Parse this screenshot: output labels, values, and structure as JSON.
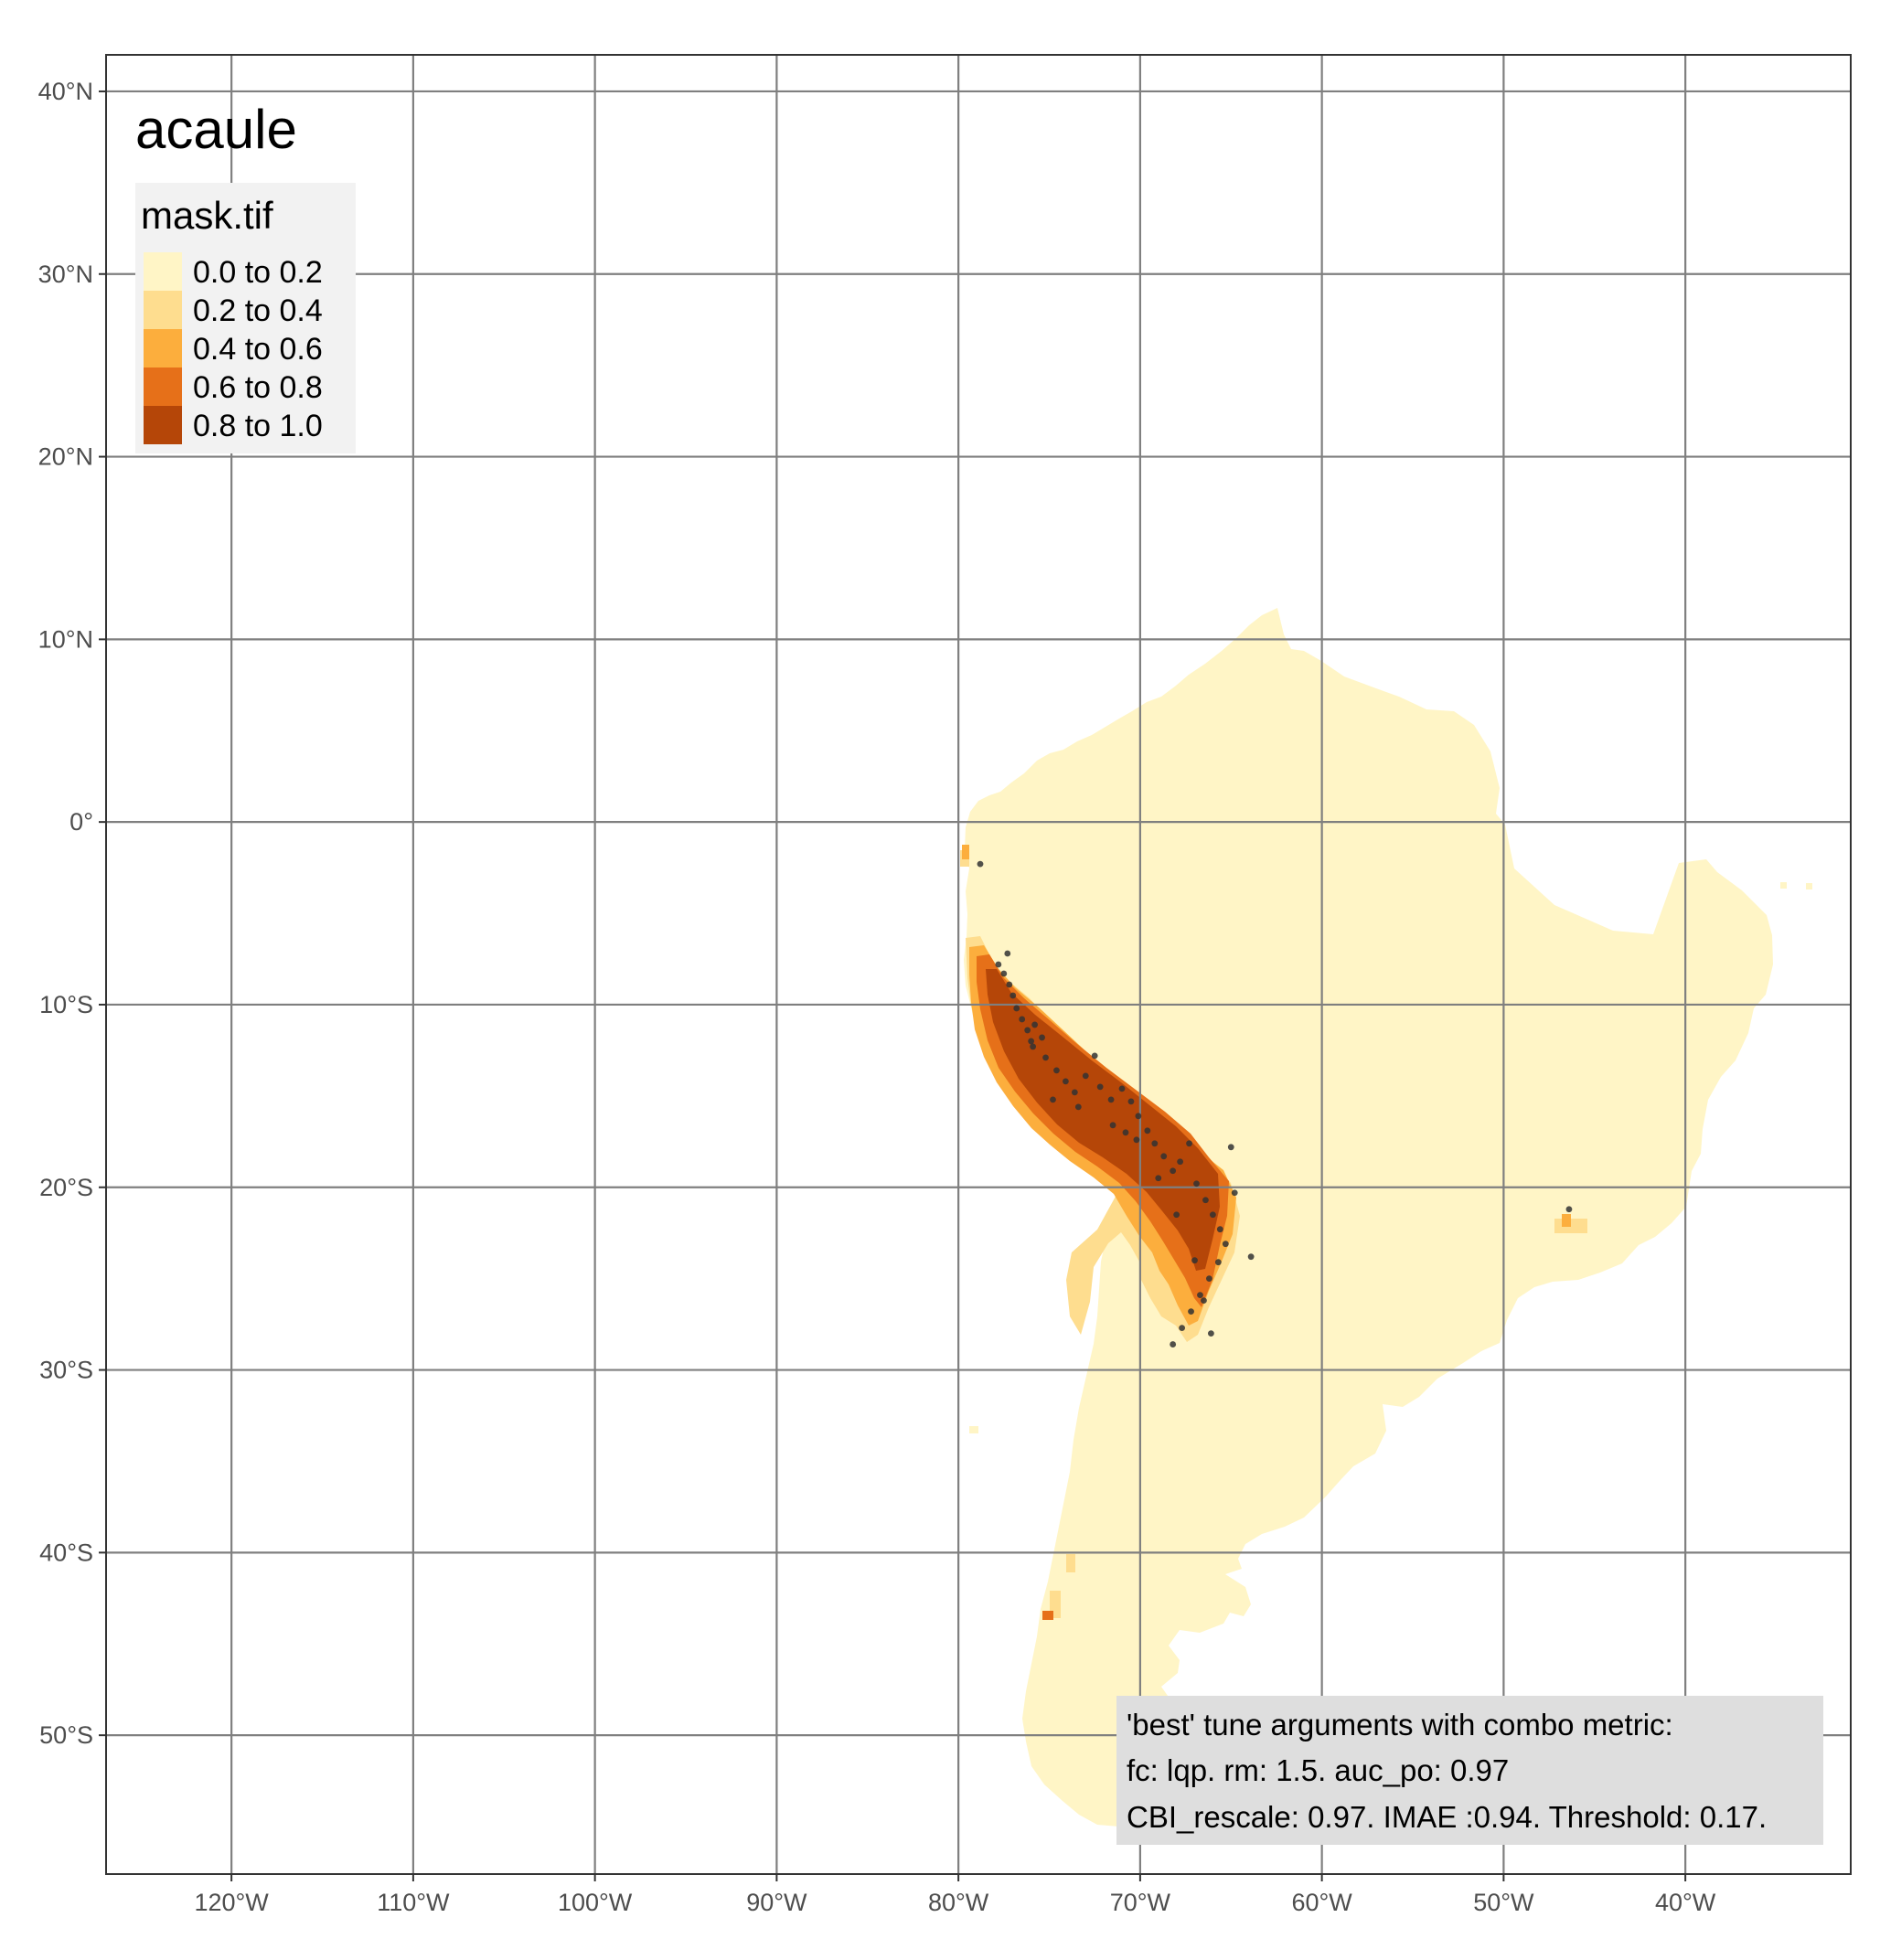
{
  "map": {
    "title": "acaule",
    "x_ticks": [
      {
        "lon": -120,
        "label": "120°W"
      },
      {
        "lon": -110,
        "label": "110°W"
      },
      {
        "lon": -100,
        "label": "100°W"
      },
      {
        "lon": -90,
        "label": "90°W"
      },
      {
        "lon": -80,
        "label": "80°W"
      },
      {
        "lon": -70,
        "label": "70°W"
      },
      {
        "lon": -60,
        "label": "60°W"
      },
      {
        "lon": -50,
        "label": "50°W"
      },
      {
        "lon": -40,
        "label": "40°W"
      }
    ],
    "y_ticks": [
      {
        "lat": 40,
        "label": "40°N"
      },
      {
        "lat": 30,
        "label": "30°N"
      },
      {
        "lat": 20,
        "label": "20°N"
      },
      {
        "lat": 10,
        "label": "10°N"
      },
      {
        "lat": 0,
        "label": "0°"
      },
      {
        "lat": -10,
        "label": "10°S"
      },
      {
        "lat": -20,
        "label": "20°S"
      },
      {
        "lat": -30,
        "label": "30°S"
      },
      {
        "lat": -40,
        "label": "40°S"
      },
      {
        "lat": -50,
        "label": "50°S"
      }
    ],
    "lon_range": [
      -126.9,
      -30.9
    ],
    "lat_range": [
      -57.6,
      42.0
    ],
    "legend": {
      "title": "mask.tif",
      "placement": "top-left",
      "classes": [
        {
          "label": "0.0 to 0.2",
          "color": "#FFF5C6"
        },
        {
          "label": "0.2 to 0.4",
          "color": "#FEDD8F"
        },
        {
          "label": "0.4 to 0.6",
          "color": "#FCAE3D"
        },
        {
          "label": "0.6 to 0.8",
          "color": "#E67019"
        },
        {
          "label": "0.8 to 1.0",
          "color": "#B54608"
        }
      ]
    },
    "annotation": [
      "'best' tune arguments with combo metric:",
      "fc: lqp. rm: 1.5. auc_po: 0.97",
      "CBI_rescale: 0.97. IMAE :0.94. Threshold: 0.17."
    ],
    "occurrences": [
      [
        -78.8,
        -2.3
      ],
      [
        -77.3,
        -7.2
      ],
      [
        -77.8,
        -7.8
      ],
      [
        -77.5,
        -8.3
      ],
      [
        -77.2,
        -8.9
      ],
      [
        -77.0,
        -9.5
      ],
      [
        -76.8,
        -10.2
      ],
      [
        -76.5,
        -10.8
      ],
      [
        -76.2,
        -11.4
      ],
      [
        -75.8,
        -11.1
      ],
      [
        -75.4,
        -11.8
      ],
      [
        -75.9,
        -12.3
      ],
      [
        -75.2,
        -12.9
      ],
      [
        -74.6,
        -13.6
      ],
      [
        -74.1,
        -14.2
      ],
      [
        -73.6,
        -14.8
      ],
      [
        -73.0,
        -13.9
      ],
      [
        -72.5,
        -12.8
      ],
      [
        -72.2,
        -14.5
      ],
      [
        -71.6,
        -15.2
      ],
      [
        -71.0,
        -14.6
      ],
      [
        -70.5,
        -15.3
      ],
      [
        -70.1,
        -16.1
      ],
      [
        -69.6,
        -16.9
      ],
      [
        -69.2,
        -17.6
      ],
      [
        -68.7,
        -18.3
      ],
      [
        -68.2,
        -19.1
      ],
      [
        -67.8,
        -18.6
      ],
      [
        -67.3,
        -17.6
      ],
      [
        -66.9,
        -19.8
      ],
      [
        -66.4,
        -20.7
      ],
      [
        -66.0,
        -21.5
      ],
      [
        -65.6,
        -22.3
      ],
      [
        -65.3,
        -23.1
      ],
      [
        -65.7,
        -24.1
      ],
      [
        -66.2,
        -25.0
      ],
      [
        -66.7,
        -25.9
      ],
      [
        -67.2,
        -26.8
      ],
      [
        -67.7,
        -27.7
      ],
      [
        -68.2,
        -28.6
      ],
      [
        -65.0,
        -17.8
      ],
      [
        -64.8,
        -20.3
      ],
      [
        -63.9,
        -23.8
      ],
      [
        -66.1,
        -28.0
      ],
      [
        -66.5,
        -26.2
      ],
      [
        -67.0,
        -24.0
      ],
      [
        -68.0,
        -21.5
      ],
      [
        -69.0,
        -19.5
      ],
      [
        -70.2,
        -17.4
      ],
      [
        -71.5,
        -16.6
      ],
      [
        -73.4,
        -15.6
      ],
      [
        -74.8,
        -15.2
      ],
      [
        -76.0,
        -12.0
      ],
      [
        -70.8,
        -17.0
      ],
      [
        -46.4,
        -21.2
      ]
    ]
  }
}
